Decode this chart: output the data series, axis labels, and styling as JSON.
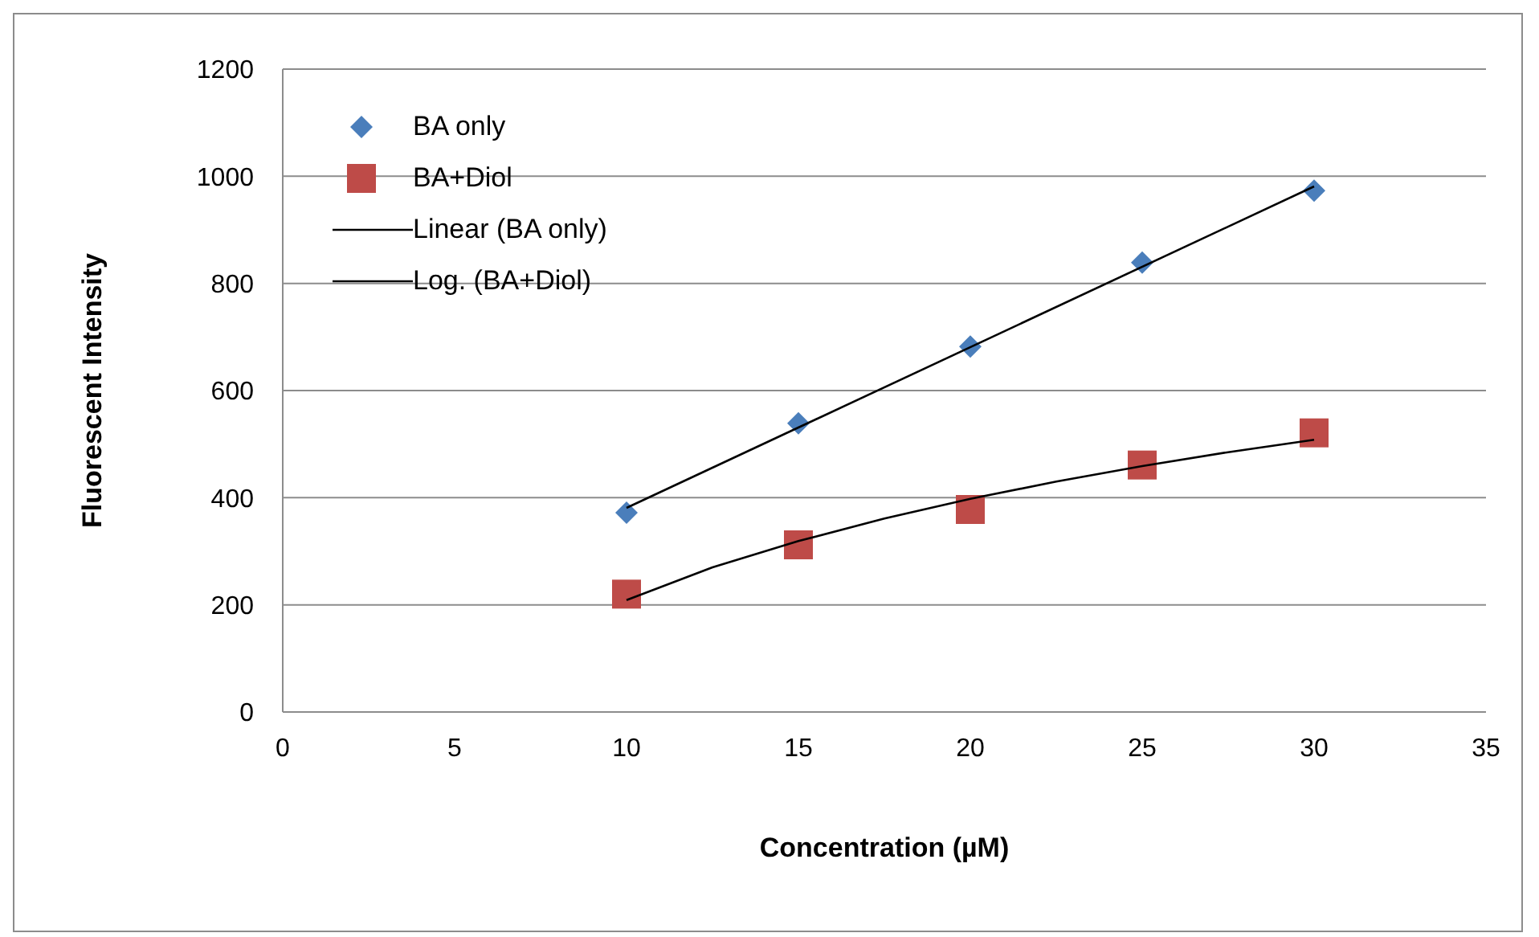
{
  "chart_data": {
    "type": "scatter",
    "xlabel": "Concentration (µM)",
    "ylabel": "Fluorescent Intensity",
    "xlim": [
      0,
      35
    ],
    "xticks": [
      0,
      5,
      10,
      15,
      20,
      25,
      30,
      35
    ],
    "ylim": [
      0,
      1200
    ],
    "yticks": [
      0,
      200,
      400,
      600,
      800,
      1000,
      1200
    ],
    "grid": "y",
    "legend": "top left",
    "series": [
      {
        "name": "BA only",
        "marker": "diamond",
        "color": "#4a7ebb",
        "x": [
          10,
          15,
          20,
          25,
          30
        ],
        "values": [
          372,
          539,
          682,
          839,
          973
        ]
      },
      {
        "name": "BA+Diol",
        "marker": "square",
        "color": "#be4b48",
        "x": [
          10,
          15,
          20,
          25,
          30
        ],
        "values": [
          220,
          312,
          378,
          461,
          521
        ]
      },
      {
        "name": "Linear (BA only)",
        "type": "line",
        "marker": "none",
        "line_style": "solid",
        "color": "#000000",
        "x": [
          10,
          30
        ],
        "values": [
          381,
          981
        ]
      },
      {
        "name": "Log. (BA+Diol)",
        "type": "line",
        "marker": "none",
        "line_style": "solid",
        "color": "#000000",
        "x": [
          10,
          12.5,
          15,
          17.5,
          20,
          22.5,
          25,
          27.5,
          30
        ],
        "values": [
          209,
          270,
          319,
          361,
          398,
          430,
          459,
          485,
          508
        ]
      }
    ]
  }
}
